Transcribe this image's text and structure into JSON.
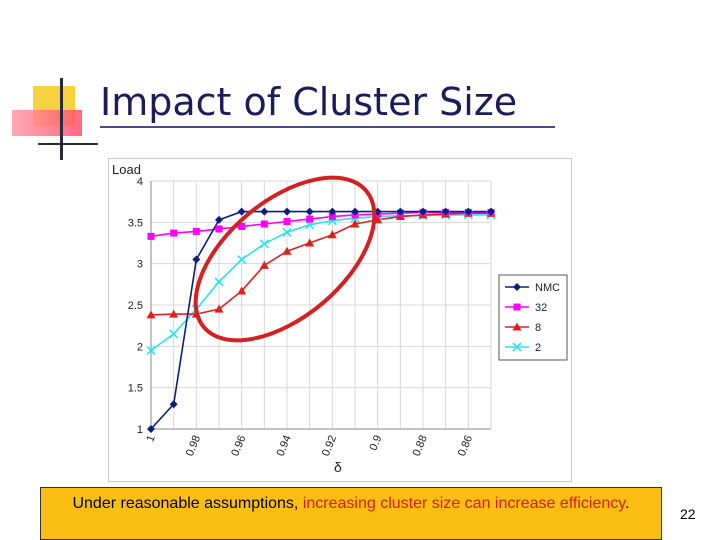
{
  "slide": {
    "title": "Impact of Cluster Size",
    "page_number": "22",
    "note_part1": "Under reasonable assumptions, ",
    "note_highlight1": "increasing cluster size can increase efficiency",
    "note_part2": ".",
    "highlight_color": "#d42020",
    "note_bg": "#fbbf14"
  },
  "chart_data": {
    "type": "line",
    "ylabel": "Load",
    "xlabel": "δ",
    "x_ticks": [
      "1",
      "0.98",
      "0.96",
      "0.94",
      "0.92",
      "0.9",
      "0.88",
      "0.86"
    ],
    "y_ticks": [
      "1",
      "1.5",
      "2",
      "2.5",
      "3",
      "3.5",
      "4"
    ],
    "ylim": [
      1,
      4
    ],
    "x": [
      1,
      0.99,
      0.98,
      0.97,
      0.96,
      0.95,
      0.94,
      0.93,
      0.92,
      0.91,
      0.9,
      0.89,
      0.88,
      0.87,
      0.86,
      0.85
    ],
    "series": [
      {
        "name": "NMC",
        "color": "#0b1f7a",
        "marker": "diamond",
        "values": [
          1.0,
          1.3,
          3.05,
          3.53,
          3.63,
          3.63,
          3.63,
          3.63,
          3.63,
          3.63,
          3.63,
          3.63,
          3.63,
          3.63,
          3.63,
          3.63
        ]
      },
      {
        "name": "32",
        "color": "#ff00ff",
        "marker": "square",
        "values": [
          3.33,
          3.37,
          3.39,
          3.42,
          3.45,
          3.48,
          3.51,
          3.54,
          3.57,
          3.59,
          3.6,
          3.61,
          3.62,
          3.62,
          3.62,
          3.62
        ]
      },
      {
        "name": "8",
        "color": "#e0201a",
        "marker": "triangle",
        "values": [
          2.38,
          2.39,
          2.39,
          2.45,
          2.67,
          2.98,
          3.15,
          3.25,
          3.35,
          3.48,
          3.53,
          3.57,
          3.59,
          3.6,
          3.61,
          3.61
        ]
      },
      {
        "name": "2",
        "color": "#2fe1f0",
        "marker": "x",
        "values": [
          1.95,
          2.15,
          2.45,
          2.78,
          3.05,
          3.24,
          3.38,
          3.47,
          3.52,
          3.55,
          3.57,
          3.58,
          3.58,
          3.59,
          3.59,
          3.59
        ]
      }
    ],
    "grid": true,
    "legend_position": "right",
    "annotation": "red ellipse highlighting the rising portion of the 32, 8 and 2 curves"
  }
}
